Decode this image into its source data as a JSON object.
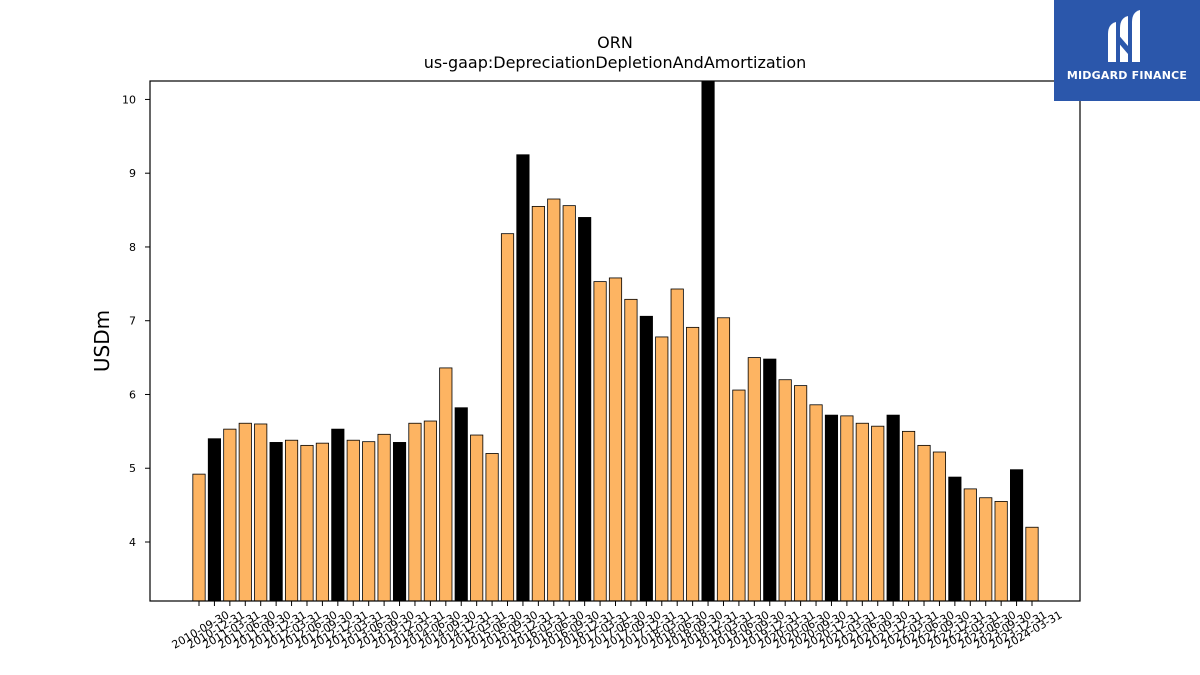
{
  "logo": {
    "text": "MIDGARD FINANCE",
    "background": "#2b57ab",
    "icon": "midgard-m-icon"
  },
  "colors": {
    "quarter_bar": "#fdb462",
    "year_end_bar": "#000000",
    "bar_edge": "#000000"
  },
  "chart_data": {
    "type": "bar",
    "title": "ORN",
    "subtitle": "us-gaap:DepreciationDepletionAndAmortization",
    "xlabel": "",
    "ylabel": "USDm",
    "ylim": [
      3.2,
      10.25
    ],
    "yticks": [
      4,
      5,
      6,
      7,
      8,
      9,
      10
    ],
    "grid": false,
    "categories": [
      "2010-09-30",
      "2010-12-31",
      "2011-03-31",
      "2011-06-30",
      "2011-09-30",
      "2011-12-31",
      "2012-03-31",
      "2012-06-30",
      "2012-09-30",
      "2012-12-31",
      "2013-03-31",
      "2013-06-30",
      "2013-09-30",
      "2013-12-31",
      "2014-03-31",
      "2014-06-30",
      "2014-09-30",
      "2014-12-31",
      "2015-03-31",
      "2015-06-30",
      "2015-09-30",
      "2015-12-31",
      "2016-03-31",
      "2016-06-30",
      "2016-09-30",
      "2016-12-31",
      "2017-03-31",
      "2017-06-30",
      "2017-09-30",
      "2017-12-31",
      "2018-03-31",
      "2018-06-30",
      "2018-09-30",
      "2018-12-31",
      "2019-03-31",
      "2019-06-30",
      "2019-09-30",
      "2019-12-31",
      "2020-03-31",
      "2020-06-30",
      "2020-09-30",
      "2020-12-31",
      "2021-03-31",
      "2021-06-30",
      "2021-09-30",
      "2021-12-31",
      "2022-03-31",
      "2022-06-30",
      "2022-09-30",
      "2022-12-31",
      "2023-03-31",
      "2023-06-30",
      "2023-09-30",
      "2023-12-31",
      "2024-03-31"
    ],
    "values": [
      4.92,
      5.4,
      5.53,
      5.61,
      5.6,
      5.35,
      5.38,
      5.31,
      5.34,
      5.53,
      5.38,
      5.36,
      5.46,
      5.35,
      5.61,
      5.64,
      6.36,
      5.82,
      5.45,
      5.2,
      8.18,
      9.25,
      8.55,
      8.65,
      8.56,
      8.4,
      7.53,
      7.58,
      7.29,
      7.06,
      6.78,
      7.43,
      6.91,
      10.3,
      7.04,
      6.06,
      6.5,
      6.48,
      6.2,
      6.12,
      5.86,
      5.72,
      5.71,
      5.61,
      5.57,
      5.72,
      5.5,
      5.31,
      5.22,
      4.88,
      4.72,
      4.6,
      4.55,
      4.98,
      4.2
    ],
    "year_end": [
      false,
      true,
      false,
      false,
      false,
      true,
      false,
      false,
      false,
      true,
      false,
      false,
      false,
      true,
      false,
      false,
      false,
      true,
      false,
      false,
      false,
      true,
      false,
      false,
      false,
      true,
      false,
      false,
      false,
      true,
      false,
      false,
      false,
      true,
      false,
      false,
      false,
      true,
      false,
      false,
      false,
      true,
      false,
      false,
      false,
      true,
      false,
      false,
      false,
      true,
      false,
      false,
      false,
      true,
      false
    ]
  }
}
